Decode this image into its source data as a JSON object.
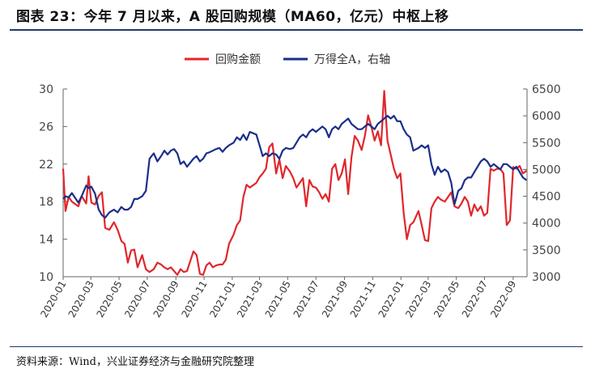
{
  "title": "图表 23：今年 7 月以来，A 股回购规模（MA60，亿元）中枢上移",
  "source": "资料来源：Wind，兴业证券经济与金融研究院整理",
  "colors": {
    "repurchase": "#e0272b",
    "wind_a": "#1a2f8a",
    "axis": "#666666",
    "rule": "#1f3a66"
  },
  "chart_data": {
    "type": "line",
    "legend_position": "top-center",
    "grid": false,
    "x_range": [
      "2020-01",
      "2022-10"
    ],
    "x_tick_labels": [
      "2020-01",
      "2020-03",
      "2020-05",
      "2020-07",
      "2020-09",
      "2020-11",
      "2021-01",
      "2021-03",
      "2021-05",
      "2021-07",
      "2021-09",
      "2021-11",
      "2022-01",
      "2022-03",
      "2022-05",
      "2022-07",
      "2022-09"
    ],
    "y_left": {
      "ticks": [
        10,
        14,
        18,
        22,
        26,
        30
      ],
      "range": [
        10,
        30
      ]
    },
    "y_right": {
      "ticks": [
        3000,
        3500,
        4000,
        4500,
        5000,
        5500,
        6000,
        6500
      ],
      "range": [
        3000,
        6500
      ]
    },
    "series": [
      {
        "name": "回购金额",
        "axis": "left",
        "color": "#e0272b",
        "points": [
          [
            "2020-01-01",
            21.5
          ],
          [
            "2020-01-06",
            17.0
          ],
          [
            "2020-01-13",
            18.5
          ],
          [
            "2020-01-20",
            18.0
          ],
          [
            "2020-02-03",
            17.5
          ],
          [
            "2020-02-10",
            18.6
          ],
          [
            "2020-02-20",
            17.8
          ],
          [
            "2020-02-25",
            20.7
          ],
          [
            "2020-03-02",
            17.9
          ],
          [
            "2020-03-10",
            17.7
          ],
          [
            "2020-03-18",
            18.6
          ],
          [
            "2020-03-25",
            19.0
          ],
          [
            "2020-04-01",
            15.2
          ],
          [
            "2020-04-10",
            15.0
          ],
          [
            "2020-04-20",
            15.8
          ],
          [
            "2020-04-28",
            15.0
          ],
          [
            "2020-05-06",
            13.8
          ],
          [
            "2020-05-13",
            13.5
          ],
          [
            "2020-05-20",
            11.5
          ],
          [
            "2020-05-27",
            12.8
          ],
          [
            "2020-06-03",
            12.9
          ],
          [
            "2020-06-10",
            11.0
          ],
          [
            "2020-06-20",
            12.3
          ],
          [
            "2020-06-28",
            10.8
          ],
          [
            "2020-07-06",
            10.5
          ],
          [
            "2020-07-15",
            10.8
          ],
          [
            "2020-07-23",
            11.5
          ],
          [
            "2020-07-31",
            11.3
          ],
          [
            "2020-08-07",
            11.0
          ],
          [
            "2020-08-14",
            10.8
          ],
          [
            "2020-08-21",
            11.0
          ],
          [
            "2020-08-28",
            10.6
          ],
          [
            "2020-09-04",
            10.2
          ],
          [
            "2020-09-11",
            10.8
          ],
          [
            "2020-09-18",
            10.5
          ],
          [
            "2020-09-25",
            10.6
          ],
          [
            "2020-10-09",
            12.7
          ],
          [
            "2020-10-16",
            12.3
          ],
          [
            "2020-10-23",
            10.3
          ],
          [
            "2020-10-30",
            10.2
          ],
          [
            "2020-11-06",
            11.2
          ],
          [
            "2020-11-13",
            11.5
          ],
          [
            "2020-11-20",
            11.0
          ],
          [
            "2020-11-27",
            11.2
          ],
          [
            "2020-12-04",
            11.3
          ],
          [
            "2020-12-11",
            11.3
          ],
          [
            "2020-12-18",
            11.8
          ],
          [
            "2020-12-25",
            13.5
          ],
          [
            "2021-01-04",
            14.5
          ],
          [
            "2021-01-11",
            15.5
          ],
          [
            "2021-01-18",
            16.0
          ],
          [
            "2021-01-25",
            18.5
          ],
          [
            "2021-02-01",
            19.8
          ],
          [
            "2021-02-08",
            19.5
          ],
          [
            "2021-02-22",
            20.0
          ],
          [
            "2021-03-01",
            20.6
          ],
          [
            "2021-03-08",
            21.0
          ],
          [
            "2021-03-15",
            21.5
          ],
          [
            "2021-03-22",
            23.8
          ],
          [
            "2021-03-29",
            24.2
          ],
          [
            "2021-04-06",
            21.0
          ],
          [
            "2021-04-13",
            22.5
          ],
          [
            "2021-04-20",
            20.5
          ],
          [
            "2021-04-27",
            21.8
          ],
          [
            "2021-05-06",
            21.2
          ],
          [
            "2021-05-13",
            20.5
          ],
          [
            "2021-05-20",
            19.5
          ],
          [
            "2021-05-27",
            20.0
          ],
          [
            "2021-06-03",
            20.5
          ],
          [
            "2021-06-10",
            17.5
          ],
          [
            "2021-06-17",
            20.3
          ],
          [
            "2021-06-24",
            19.6
          ],
          [
            "2021-07-01",
            19.5
          ],
          [
            "2021-07-08",
            19.0
          ],
          [
            "2021-07-15",
            18.3
          ],
          [
            "2021-07-22",
            18.8
          ],
          [
            "2021-07-29",
            18.0
          ],
          [
            "2021-08-05",
            21.5
          ],
          [
            "2021-08-12",
            22.0
          ],
          [
            "2021-08-19",
            20.3
          ],
          [
            "2021-08-26",
            21.0
          ],
          [
            "2021-09-02",
            22.5
          ],
          [
            "2021-09-09",
            18.8
          ],
          [
            "2021-09-16",
            22.7
          ],
          [
            "2021-09-23",
            25.0
          ],
          [
            "2021-09-30",
            24.5
          ],
          [
            "2021-10-08",
            23.5
          ],
          [
            "2021-10-15",
            25.0
          ],
          [
            "2021-10-22",
            27.2
          ],
          [
            "2021-10-29",
            26.0
          ],
          [
            "2021-11-05",
            24.5
          ],
          [
            "2021-11-12",
            25.5
          ],
          [
            "2021-11-19",
            24.0
          ],
          [
            "2021-11-26",
            29.8
          ],
          [
            "2021-12-03",
            24.5
          ],
          [
            "2021-12-10",
            23.0
          ],
          [
            "2021-12-17",
            21.5
          ],
          [
            "2021-12-24",
            20.5
          ],
          [
            "2021-12-31",
            21.0
          ],
          [
            "2022-01-07",
            16.8
          ],
          [
            "2022-01-14",
            14.0
          ],
          [
            "2022-01-21",
            15.5
          ],
          [
            "2022-01-28",
            15.8
          ],
          [
            "2022-02-08",
            17.0
          ],
          [
            "2022-02-15",
            15.5
          ],
          [
            "2022-02-22",
            13.9
          ],
          [
            "2022-03-01",
            13.8
          ],
          [
            "2022-03-08",
            17.3
          ],
          [
            "2022-03-15",
            18.0
          ],
          [
            "2022-03-22",
            18.5
          ],
          [
            "2022-03-29",
            18.2
          ],
          [
            "2022-04-06",
            18.0
          ],
          [
            "2022-04-13",
            18.5
          ],
          [
            "2022-04-20",
            19.0
          ],
          [
            "2022-04-27",
            17.5
          ],
          [
            "2022-05-05",
            17.3
          ],
          [
            "2022-05-12",
            17.8
          ],
          [
            "2022-05-19",
            18.5
          ],
          [
            "2022-05-26",
            18.0
          ],
          [
            "2022-06-02",
            16.5
          ],
          [
            "2022-06-09",
            17.7
          ],
          [
            "2022-06-16",
            17.0
          ],
          [
            "2022-06-23",
            17.5
          ],
          [
            "2022-06-30",
            16.5
          ],
          [
            "2022-07-07",
            16.8
          ],
          [
            "2022-07-14",
            21.5
          ],
          [
            "2022-07-21",
            21.3
          ],
          [
            "2022-07-28",
            21.5
          ],
          [
            "2022-08-04",
            21.5
          ],
          [
            "2022-08-11",
            21.0
          ],
          [
            "2022-08-18",
            15.5
          ],
          [
            "2022-08-25",
            16.0
          ],
          [
            "2022-09-01",
            21.7
          ],
          [
            "2022-09-08",
            21.5
          ],
          [
            "2022-09-15",
            21.8
          ],
          [
            "2022-09-22",
            21.0
          ],
          [
            "2022-09-30",
            21.3
          ]
        ]
      },
      {
        "name": "万得全A，右轴",
        "axis": "right",
        "color": "#1a2f8a",
        "points": [
          [
            "2020-01-01",
            4450
          ],
          [
            "2020-01-06",
            4500
          ],
          [
            "2020-01-13",
            4480
          ],
          [
            "2020-01-20",
            4560
          ],
          [
            "2020-02-03",
            4380
          ],
          [
            "2020-02-10",
            4500
          ],
          [
            "2020-02-20",
            4700
          ],
          [
            "2020-02-25",
            4650
          ],
          [
            "2020-03-02",
            4680
          ],
          [
            "2020-03-10",
            4550
          ],
          [
            "2020-03-18",
            4250
          ],
          [
            "2020-03-25",
            4150
          ],
          [
            "2020-04-01",
            4100
          ],
          [
            "2020-04-10",
            4200
          ],
          [
            "2020-04-20",
            4250
          ],
          [
            "2020-04-28",
            4200
          ],
          [
            "2020-05-06",
            4300
          ],
          [
            "2020-05-13",
            4250
          ],
          [
            "2020-05-20",
            4250
          ],
          [
            "2020-05-27",
            4300
          ],
          [
            "2020-06-03",
            4450
          ],
          [
            "2020-06-10",
            4450
          ],
          [
            "2020-06-20",
            4500
          ],
          [
            "2020-06-28",
            4600
          ],
          [
            "2020-07-06",
            5200
          ],
          [
            "2020-07-15",
            5300
          ],
          [
            "2020-07-23",
            5150
          ],
          [
            "2020-07-31",
            5250
          ],
          [
            "2020-08-07",
            5350
          ],
          [
            "2020-08-14",
            5280
          ],
          [
            "2020-08-21",
            5350
          ],
          [
            "2020-08-28",
            5380
          ],
          [
            "2020-09-04",
            5300
          ],
          [
            "2020-09-11",
            5100
          ],
          [
            "2020-09-18",
            5150
          ],
          [
            "2020-09-25",
            5050
          ],
          [
            "2020-10-09",
            5200
          ],
          [
            "2020-10-16",
            5250
          ],
          [
            "2020-10-23",
            5150
          ],
          [
            "2020-10-30",
            5200
          ],
          [
            "2020-11-06",
            5300
          ],
          [
            "2020-11-13",
            5320
          ],
          [
            "2020-11-20",
            5350
          ],
          [
            "2020-11-27",
            5380
          ],
          [
            "2020-12-04",
            5400
          ],
          [
            "2020-12-11",
            5330
          ],
          [
            "2020-12-18",
            5400
          ],
          [
            "2020-12-25",
            5450
          ],
          [
            "2021-01-04",
            5500
          ],
          [
            "2021-01-11",
            5600
          ],
          [
            "2021-01-18",
            5550
          ],
          [
            "2021-01-25",
            5650
          ],
          [
            "2021-02-01",
            5550
          ],
          [
            "2021-02-08",
            5700
          ],
          [
            "2021-02-22",
            5650
          ],
          [
            "2021-03-01",
            5450
          ],
          [
            "2021-03-08",
            5250
          ],
          [
            "2021-03-15",
            5300
          ],
          [
            "2021-03-22",
            5250
          ],
          [
            "2021-03-29",
            5300
          ],
          [
            "2021-04-06",
            5280
          ],
          [
            "2021-04-13",
            5200
          ],
          [
            "2021-04-20",
            5350
          ],
          [
            "2021-04-27",
            5400
          ],
          [
            "2021-05-06",
            5380
          ],
          [
            "2021-05-13",
            5400
          ],
          [
            "2021-05-20",
            5500
          ],
          [
            "2021-05-27",
            5600
          ],
          [
            "2021-06-03",
            5650
          ],
          [
            "2021-06-10",
            5600
          ],
          [
            "2021-06-17",
            5700
          ],
          [
            "2021-06-24",
            5750
          ],
          [
            "2021-07-01",
            5700
          ],
          [
            "2021-07-08",
            5750
          ],
          [
            "2021-07-15",
            5800
          ],
          [
            "2021-07-22",
            5750
          ],
          [
            "2021-07-29",
            5600
          ],
          [
            "2021-08-05",
            5750
          ],
          [
            "2021-08-12",
            5800
          ],
          [
            "2021-08-19",
            5750
          ],
          [
            "2021-08-26",
            5850
          ],
          [
            "2021-09-02",
            5900
          ],
          [
            "2021-09-09",
            5950
          ],
          [
            "2021-09-16",
            5850
          ],
          [
            "2021-09-23",
            5800
          ],
          [
            "2021-09-30",
            5750
          ],
          [
            "2021-10-08",
            5750
          ],
          [
            "2021-10-15",
            5800
          ],
          [
            "2021-10-22",
            5850
          ],
          [
            "2021-10-29",
            5800
          ],
          [
            "2021-11-05",
            5750
          ],
          [
            "2021-11-12",
            5850
          ],
          [
            "2021-11-19",
            5900
          ],
          [
            "2021-11-26",
            5950
          ],
          [
            "2021-12-03",
            6000
          ],
          [
            "2021-12-10",
            5950
          ],
          [
            "2021-12-17",
            6000
          ],
          [
            "2021-12-24",
            5900
          ],
          [
            "2021-12-31",
            5900
          ],
          [
            "2022-01-07",
            5750
          ],
          [
            "2022-01-14",
            5650
          ],
          [
            "2022-01-21",
            5600
          ],
          [
            "2022-01-28",
            5350
          ],
          [
            "2022-02-08",
            5400
          ],
          [
            "2022-02-15",
            5450
          ],
          [
            "2022-02-22",
            5400
          ],
          [
            "2022-03-01",
            5450
          ],
          [
            "2022-03-08",
            5100
          ],
          [
            "2022-03-15",
            4900
          ],
          [
            "2022-03-22",
            5050
          ],
          [
            "2022-03-29",
            4950
          ],
          [
            "2022-04-06",
            5000
          ],
          [
            "2022-04-13",
            4950
          ],
          [
            "2022-04-20",
            4750
          ],
          [
            "2022-04-27",
            4350
          ],
          [
            "2022-05-05",
            4600
          ],
          [
            "2022-05-12",
            4650
          ],
          [
            "2022-05-19",
            4800
          ],
          [
            "2022-05-26",
            4850
          ],
          [
            "2022-06-02",
            4850
          ],
          [
            "2022-06-09",
            4950
          ],
          [
            "2022-06-16",
            5050
          ],
          [
            "2022-06-23",
            5150
          ],
          [
            "2022-06-30",
            5200
          ],
          [
            "2022-07-07",
            5150
          ],
          [
            "2022-07-14",
            5050
          ],
          [
            "2022-07-21",
            5100
          ],
          [
            "2022-07-28",
            5050
          ],
          [
            "2022-08-04",
            5000
          ],
          [
            "2022-08-11",
            5100
          ],
          [
            "2022-08-18",
            5100
          ],
          [
            "2022-08-25",
            5050
          ],
          [
            "2022-09-01",
            5000
          ],
          [
            "2022-09-08",
            5050
          ],
          [
            "2022-09-15",
            4950
          ],
          [
            "2022-09-22",
            4850
          ],
          [
            "2022-09-30",
            4800
          ]
        ]
      }
    ]
  }
}
